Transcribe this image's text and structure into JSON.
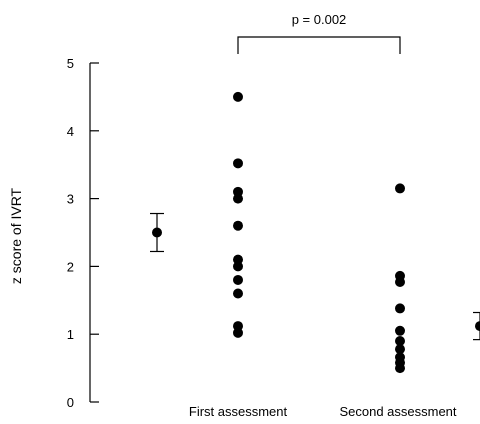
{
  "chart_data": {
    "type": "scatter",
    "title": "",
    "xlabel": "",
    "ylabel": "z score of IVRT",
    "ylim": [
      0,
      5
    ],
    "yticks": [
      0,
      1,
      2,
      3,
      4,
      5
    ],
    "grid": false,
    "legend": "none",
    "categories": [
      "First assessment",
      "Second assessment"
    ],
    "series": [
      {
        "values": [
          4.5,
          3.52,
          3.1,
          3.0,
          2.6,
          2.1,
          2.0,
          1.8,
          1.6,
          1.12,
          1.02
        ]
      },
      {
        "values": [
          3.15,
          1.86,
          1.77,
          1.38,
          1.05,
          0.9,
          0.78,
          0.66,
          0.58,
          0.5
        ]
      }
    ],
    "reference_bars": [
      {
        "mean": 2.5,
        "low": 2.22,
        "high": 2.78
      },
      {
        "mean": 1.12,
        "low": 0.92,
        "high": 1.32
      }
    ],
    "annotation": {
      "text": "p = 0.002"
    },
    "colors": {
      "marker": "#000000",
      "axis": "#000000"
    }
  }
}
